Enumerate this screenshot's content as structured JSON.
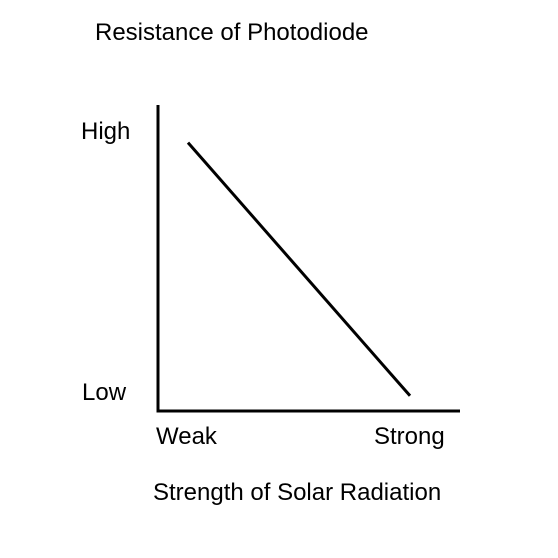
{
  "chart_data": {
    "type": "line",
    "title": "Resistance of Photodiode",
    "xlabel": "Strength of Solar Radiation",
    "ylabel": "",
    "x_ticks": [
      "Weak",
      "Strong"
    ],
    "y_ticks": [
      "Low",
      "High"
    ],
    "xlim": [
      0,
      1
    ],
    "ylim": [
      0,
      1
    ],
    "grid": false,
    "legend": "none",
    "series": [
      {
        "x": [
          0.1,
          0.84
        ],
        "y": [
          0.88,
          0.05
        ]
      }
    ],
    "line_color": "#000000"
  }
}
